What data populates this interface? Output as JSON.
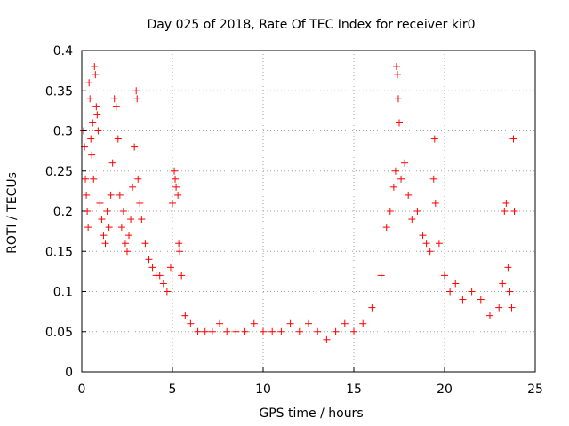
{
  "chart_data": {
    "type": "scatter",
    "title": "Day 025 of 2018, Rate Of TEC Index for receiver kir0",
    "xlabel": "GPS time / hours",
    "ylabel": "ROTI / TECUs",
    "xlim": [
      0,
      25
    ],
    "ylim": [
      0,
      0.4
    ],
    "x_ticks": [
      0,
      5,
      10,
      15,
      20,
      25
    ],
    "y_ticks": [
      0,
      0.05,
      0.1,
      0.15,
      0.2,
      0.25,
      0.3,
      0.35,
      0.4
    ],
    "x_tick_labels": [
      "0",
      "5",
      "10",
      "15",
      "20",
      "25"
    ],
    "y_tick_labels": [
      "0",
      "0.05",
      "0.1",
      "0.15",
      "0.2",
      "0.25",
      "0.3",
      "0.35",
      "0.4"
    ],
    "grid": true,
    "marker": "+",
    "marker_color": "#ff0000",
    "series": [
      {
        "name": "ROTI",
        "points": [
          [
            0.1,
            0.3
          ],
          [
            0.15,
            0.28
          ],
          [
            0.2,
            0.24
          ],
          [
            0.25,
            0.22
          ],
          [
            0.3,
            0.2
          ],
          [
            0.35,
            0.18
          ],
          [
            0.4,
            0.36
          ],
          [
            0.45,
            0.34
          ],
          [
            0.5,
            0.29
          ],
          [
            0.55,
            0.27
          ],
          [
            0.6,
            0.31
          ],
          [
            0.65,
            0.24
          ],
          [
            0.7,
            0.38
          ],
          [
            0.75,
            0.37
          ],
          [
            0.8,
            0.33
          ],
          [
            0.85,
            0.32
          ],
          [
            0.9,
            0.3
          ],
          [
            1.0,
            0.21
          ],
          [
            1.1,
            0.19
          ],
          [
            1.2,
            0.17
          ],
          [
            1.3,
            0.16
          ],
          [
            1.4,
            0.2
          ],
          [
            1.5,
            0.18
          ],
          [
            1.6,
            0.22
          ],
          [
            1.7,
            0.26
          ],
          [
            1.8,
            0.34
          ],
          [
            1.9,
            0.33
          ],
          [
            2.0,
            0.29
          ],
          [
            2.1,
            0.22
          ],
          [
            2.2,
            0.18
          ],
          [
            2.3,
            0.2
          ],
          [
            2.4,
            0.16
          ],
          [
            2.5,
            0.15
          ],
          [
            2.6,
            0.17
          ],
          [
            2.7,
            0.19
          ],
          [
            2.8,
            0.23
          ],
          [
            2.9,
            0.28
          ],
          [
            3.0,
            0.35
          ],
          [
            3.05,
            0.34
          ],
          [
            3.1,
            0.24
          ],
          [
            3.2,
            0.21
          ],
          [
            3.3,
            0.19
          ],
          [
            3.5,
            0.16
          ],
          [
            3.7,
            0.14
          ],
          [
            3.9,
            0.13
          ],
          [
            4.1,
            0.12
          ],
          [
            4.3,
            0.12
          ],
          [
            4.5,
            0.11
          ],
          [
            4.7,
            0.1
          ],
          [
            4.9,
            0.13
          ],
          [
            5.0,
            0.21
          ],
          [
            5.1,
            0.25
          ],
          [
            5.15,
            0.24
          ],
          [
            5.2,
            0.23
          ],
          [
            5.3,
            0.22
          ],
          [
            5.35,
            0.16
          ],
          [
            5.4,
            0.15
          ],
          [
            5.5,
            0.12
          ],
          [
            5.7,
            0.07
          ],
          [
            6.0,
            0.06
          ],
          [
            6.4,
            0.05
          ],
          [
            6.8,
            0.05
          ],
          [
            7.2,
            0.05
          ],
          [
            7.6,
            0.06
          ],
          [
            8.0,
            0.05
          ],
          [
            8.5,
            0.05
          ],
          [
            9.0,
            0.05
          ],
          [
            9.5,
            0.06
          ],
          [
            10.0,
            0.05
          ],
          [
            10.5,
            0.05
          ],
          [
            11.0,
            0.05
          ],
          [
            11.5,
            0.06
          ],
          [
            12.0,
            0.05
          ],
          [
            12.5,
            0.06
          ],
          [
            13.0,
            0.05
          ],
          [
            13.5,
            0.04
          ],
          [
            14.0,
            0.05
          ],
          [
            14.5,
            0.06
          ],
          [
            15.0,
            0.05
          ],
          [
            15.5,
            0.06
          ],
          [
            16.0,
            0.08
          ],
          [
            16.5,
            0.12
          ],
          [
            16.8,
            0.18
          ],
          [
            17.0,
            0.2
          ],
          [
            17.2,
            0.23
          ],
          [
            17.3,
            0.25
          ],
          [
            17.35,
            0.38
          ],
          [
            17.4,
            0.37
          ],
          [
            17.45,
            0.34
          ],
          [
            17.5,
            0.31
          ],
          [
            17.6,
            0.24
          ],
          [
            17.8,
            0.26
          ],
          [
            18.0,
            0.22
          ],
          [
            18.2,
            0.19
          ],
          [
            18.5,
            0.2
          ],
          [
            18.8,
            0.17
          ],
          [
            19.0,
            0.16
          ],
          [
            19.2,
            0.15
          ],
          [
            19.4,
            0.24
          ],
          [
            19.45,
            0.29
          ],
          [
            19.5,
            0.21
          ],
          [
            19.7,
            0.16
          ],
          [
            20.0,
            0.12
          ],
          [
            20.3,
            0.1
          ],
          [
            20.6,
            0.11
          ],
          [
            21.0,
            0.09
          ],
          [
            21.5,
            0.1
          ],
          [
            22.0,
            0.09
          ],
          [
            22.5,
            0.07
          ],
          [
            23.0,
            0.08
          ],
          [
            23.2,
            0.11
          ],
          [
            23.3,
            0.2
          ],
          [
            23.4,
            0.21
          ],
          [
            23.5,
            0.13
          ],
          [
            23.6,
            0.1
          ],
          [
            23.7,
            0.08
          ],
          [
            23.8,
            0.29
          ],
          [
            23.85,
            0.2
          ]
        ]
      }
    ]
  }
}
